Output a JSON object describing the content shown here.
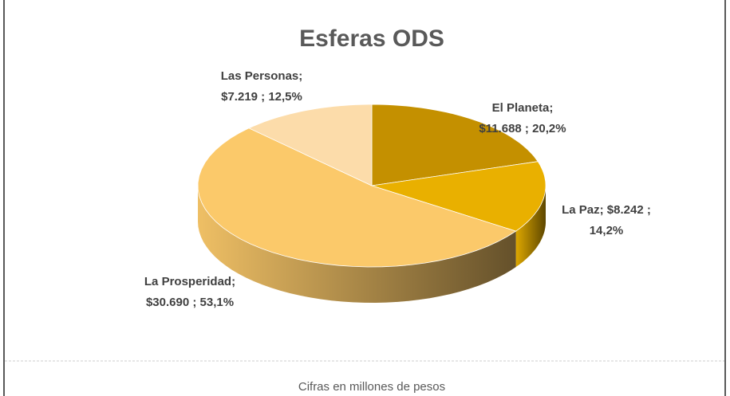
{
  "chart_data": {
    "type": "pie3d",
    "title": "Esferas ODS",
    "data_labels": [
      [
        "El Planeta;",
        "$11.688 ; 20,2%"
      ],
      [
        "La Paz;  $8.242 ;",
        "14,2%"
      ],
      [
        "La Prosperidad;",
        "$30.690 ; 53,1%"
      ],
      [
        "Las Personas;",
        "$7.219 ; 12,5%"
      ]
    ],
    "values": [
      11688,
      8242,
      30690,
      7219
    ],
    "percents": [
      20.2,
      14.2,
      53.1,
      12.5
    ],
    "colors": [
      "#c49000",
      "#e9b000",
      "#fbc96a",
      "#fcdcaa"
    ],
    "note": "Cifras en millones de pesos"
  }
}
